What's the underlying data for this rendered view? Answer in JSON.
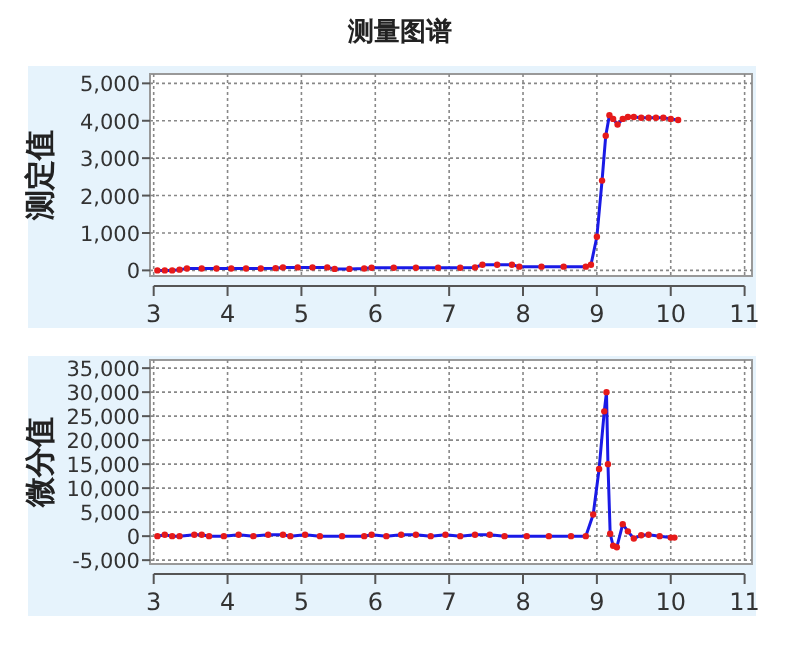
{
  "chart_data": [
    {
      "type": "line",
      "title": "测量图谱",
      "ylabel": "测定值",
      "xlim": [
        2.95,
        11.1
      ],
      "xticks": [
        3,
        4,
        5,
        6,
        7,
        8,
        9,
        10,
        11
      ],
      "ylim": [
        -150,
        5250
      ],
      "yticks": [
        {
          "value": 0,
          "label": "0"
        },
        {
          "value": 1000,
          "label": "1,000"
        },
        {
          "value": 2000,
          "label": "2,000"
        },
        {
          "value": 3000,
          "label": "3,000"
        },
        {
          "value": 4000,
          "label": "4,000"
        },
        {
          "value": 5000,
          "label": "5,000"
        }
      ],
      "grid": true,
      "series": [
        {
          "color": "#1a1ae6",
          "x": [
            3.05,
            3.15,
            3.25,
            3.35,
            3.45,
            3.65,
            3.85,
            4.05,
            4.25,
            4.45,
            4.65,
            4.75,
            4.95,
            5.15,
            5.35,
            5.45,
            5.65,
            5.85,
            5.95,
            6.25,
            6.55,
            6.85,
            7.15,
            7.35,
            7.45,
            7.65,
            7.85,
            7.95,
            8.25,
            8.55,
            8.85,
            8.92,
            9.0,
            9.07,
            9.12,
            9.17,
            9.22,
            9.28,
            9.35,
            9.42,
            9.5,
            9.6,
            9.7,
            9.8,
            9.9,
            10.0,
            10.1
          ],
          "values": [
            0,
            0,
            0,
            20,
            50,
            50,
            50,
            50,
            50,
            50,
            60,
            80,
            80,
            80,
            80,
            40,
            40,
            50,
            70,
            70,
            70,
            70,
            70,
            80,
            150,
            150,
            150,
            100,
            100,
            100,
            100,
            150,
            900,
            2400,
            3600,
            4150,
            4050,
            3900,
            4050,
            4100,
            4100,
            4080,
            4080,
            4080,
            4080,
            4050,
            4020
          ]
        },
        {
          "type": "scatter",
          "marker": "circle",
          "color": "#e61a1a",
          "x": [
            3.05,
            3.15,
            3.25,
            3.35,
            3.45,
            3.65,
            3.85,
            4.05,
            4.25,
            4.45,
            4.65,
            4.75,
            4.95,
            5.15,
            5.35,
            5.45,
            5.65,
            5.85,
            5.95,
            6.25,
            6.55,
            6.85,
            7.15,
            7.35,
            7.45,
            7.65,
            7.85,
            7.95,
            8.25,
            8.55,
            8.85,
            8.92,
            9.0,
            9.07,
            9.12,
            9.17,
            9.22,
            9.28,
            9.35,
            9.42,
            9.5,
            9.6,
            9.7,
            9.8,
            9.9,
            10.0,
            10.1
          ],
          "values": [
            0,
            0,
            0,
            20,
            50,
            50,
            50,
            50,
            50,
            50,
            60,
            80,
            80,
            80,
            80,
            40,
            40,
            50,
            70,
            70,
            70,
            70,
            70,
            80,
            150,
            150,
            150,
            100,
            100,
            100,
            100,
            150,
            900,
            2400,
            3600,
            4150,
            4050,
            3900,
            4050,
            4100,
            4100,
            4080,
            4080,
            4080,
            4080,
            4050,
            4020
          ]
        }
      ]
    },
    {
      "type": "line",
      "ylabel": "微分值",
      "xlim": [
        2.95,
        11.1
      ],
      "xticks": [
        3,
        4,
        5,
        6,
        7,
        8,
        9,
        10,
        11
      ],
      "ylim": [
        -5800,
        36700
      ],
      "yticks": [
        {
          "value": -5000,
          "label": "-5,000"
        },
        {
          "value": 0,
          "label": "0"
        },
        {
          "value": 5000,
          "label": "5,000"
        },
        {
          "value": 10000,
          "label": "10,000"
        },
        {
          "value": 15000,
          "label": "15,000"
        },
        {
          "value": 20000,
          "label": "20,000"
        },
        {
          "value": 25000,
          "label": "25,000"
        },
        {
          "value": 30000,
          "label": "30,000"
        },
        {
          "value": 35000,
          "label": "35,000"
        }
      ],
      "grid": true,
      "series": [
        {
          "color": "#1a1ae6",
          "x": [
            3.05,
            3.15,
            3.25,
            3.35,
            3.55,
            3.65,
            3.75,
            3.95,
            4.15,
            4.35,
            4.55,
            4.75,
            4.85,
            5.05,
            5.25,
            5.55,
            5.85,
            5.95,
            6.15,
            6.35,
            6.55,
            6.75,
            6.95,
            7.15,
            7.35,
            7.55,
            7.75,
            8.05,
            8.35,
            8.65,
            8.85,
            8.95,
            9.03,
            9.1,
            9.13,
            9.15,
            9.18,
            9.22,
            9.27,
            9.35,
            9.42,
            9.5,
            9.6,
            9.7,
            9.85,
            10.0,
            10.05
          ],
          "values": [
            0,
            300,
            0,
            0,
            300,
            300,
            0,
            0,
            300,
            0,
            300,
            300,
            0,
            300,
            0,
            0,
            0,
            300,
            0,
            300,
            300,
            0,
            300,
            0,
            300,
            300,
            0,
            0,
            0,
            0,
            0,
            4500,
            14000,
            26000,
            30000,
            15000,
            500,
            -2000,
            -2300,
            2500,
            1000,
            -500,
            200,
            300,
            0,
            -300,
            -300
          ]
        },
        {
          "type": "scatter",
          "marker": "circle",
          "color": "#e61a1a",
          "x": [
            3.05,
            3.15,
            3.25,
            3.35,
            3.55,
            3.65,
            3.75,
            3.95,
            4.15,
            4.35,
            4.55,
            4.75,
            4.85,
            5.05,
            5.25,
            5.55,
            5.85,
            5.95,
            6.15,
            6.35,
            6.55,
            6.75,
            6.95,
            7.15,
            7.35,
            7.55,
            7.75,
            8.05,
            8.35,
            8.65,
            8.85,
            8.95,
            9.03,
            9.1,
            9.13,
            9.15,
            9.18,
            9.22,
            9.27,
            9.35,
            9.42,
            9.5,
            9.6,
            9.7,
            9.85,
            10.0,
            10.05
          ],
          "values": [
            0,
            300,
            0,
            0,
            300,
            300,
            0,
            0,
            300,
            0,
            300,
            300,
            0,
            300,
            0,
            0,
            0,
            300,
            0,
            300,
            300,
            0,
            300,
            0,
            300,
            300,
            0,
            0,
            0,
            0,
            0,
            4500,
            14000,
            26000,
            30000,
            15000,
            500,
            -2000,
            -2300,
            2500,
            1000,
            -500,
            200,
            300,
            0,
            -300,
            -300
          ]
        }
      ]
    }
  ]
}
